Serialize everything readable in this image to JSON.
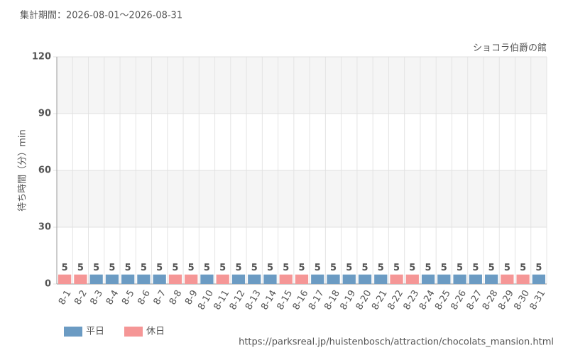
{
  "chart_data": {
    "type": "bar",
    "subtitle": "集計期間：2026-08-01～2026-08-31",
    "title": "ショコラ伯爵の館",
    "y_label": "待ち時間（分）min",
    "source": "https://parksreal.jp/huistenbosch/attraction/chocolats_mansion.html",
    "categories": [
      "8-1",
      "8-2",
      "8-3",
      "8-4",
      "8-5",
      "8-6",
      "8-7",
      "8-8",
      "8-9",
      "8-10",
      "8-11",
      "8-12",
      "8-13",
      "8-14",
      "8-15",
      "8-16",
      "8-17",
      "8-18",
      "8-19",
      "8-20",
      "8-21",
      "8-22",
      "8-23",
      "8-24",
      "8-25",
      "8-26",
      "8-27",
      "8-28",
      "8-29",
      "8-30",
      "8-31"
    ],
    "series": [
      {
        "name": "平日",
        "color": "#6b9bc3",
        "values": [
          null,
          null,
          5,
          5,
          5,
          5,
          5,
          null,
          null,
          5,
          null,
          5,
          5,
          5,
          null,
          null,
          5,
          5,
          5,
          5,
          5,
          null,
          null,
          5,
          5,
          5,
          5,
          5,
          null,
          null,
          5
        ]
      },
      {
        "name": "休日",
        "color": "#f59696",
        "values": [
          5,
          5,
          null,
          null,
          null,
          null,
          null,
          5,
          5,
          null,
          5,
          null,
          null,
          null,
          5,
          5,
          null,
          null,
          null,
          null,
          null,
          5,
          5,
          null,
          null,
          null,
          null,
          null,
          5,
          5,
          null
        ]
      }
    ],
    "ylim": [
      0,
      120
    ],
    "yticks": [
      0,
      30,
      60,
      90,
      120
    ],
    "grid": true,
    "legend": "bottom-left"
  }
}
